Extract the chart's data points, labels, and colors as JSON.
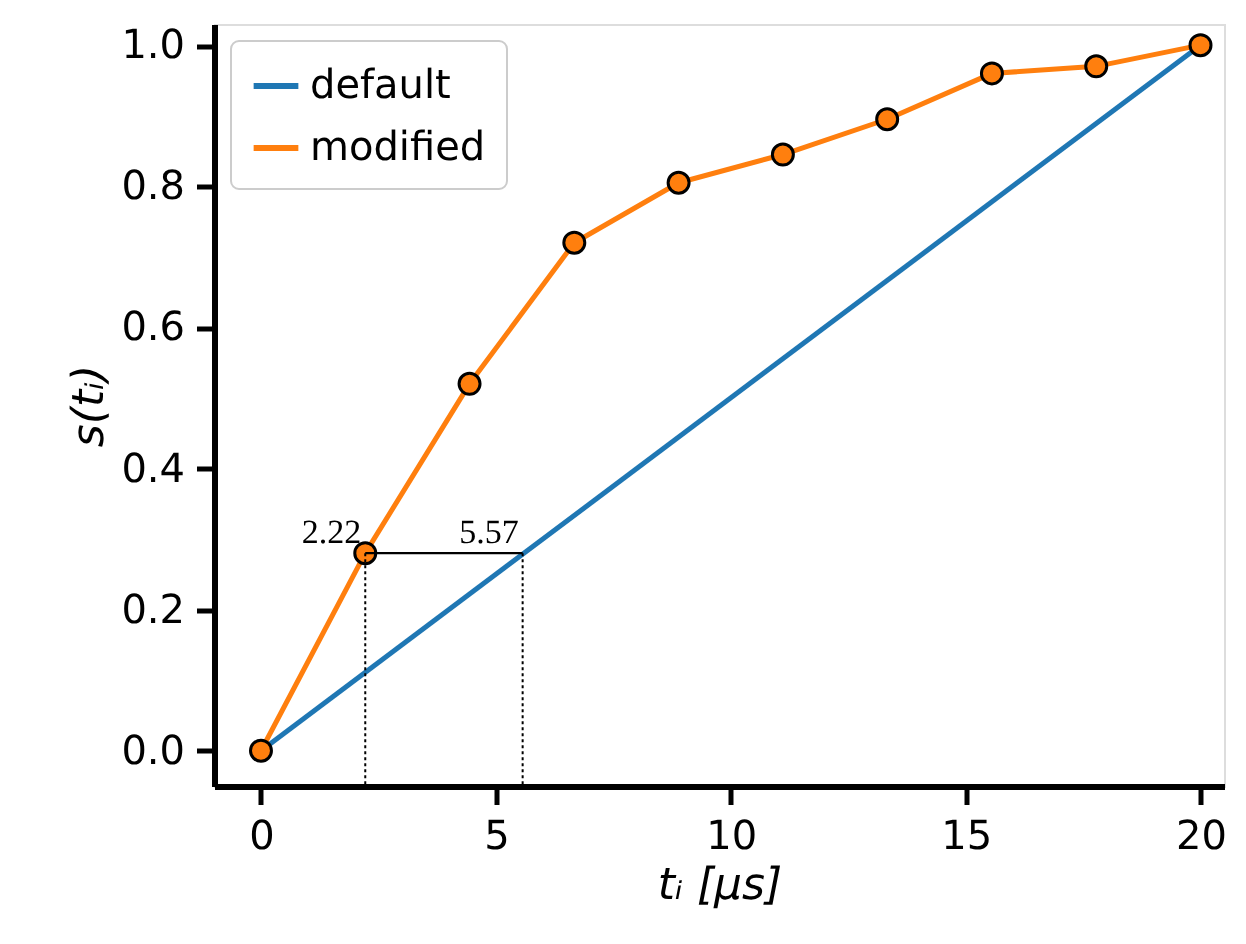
{
  "chart_data": {
    "type": "line",
    "xlabel": "tᵢ [μs]",
    "ylabel": "s(tᵢ)",
    "xlim": [
      -1,
      20.5
    ],
    "ylim": [
      -0.05,
      1.03
    ],
    "xticks": [
      0,
      5,
      10,
      15,
      20
    ],
    "yticks": [
      {
        "value": 0,
        "label": "0.0"
      },
      0.2,
      0.4,
      0.6,
      0.8,
      {
        "value": 1,
        "label": "1.0"
      }
    ],
    "grid": false,
    "legend": "top left",
    "line_style": "solid",
    "series": [
      {
        "name": "default",
        "color": "#1f77b4",
        "marker": "none",
        "x": [
          0,
          20
        ],
        "values": [
          0,
          1
        ]
      },
      {
        "name": "modified",
        "color": "#ff7f0e",
        "marker": "circle",
        "x": [
          0,
          2.22,
          4.44,
          6.67,
          8.89,
          11.11,
          13.33,
          15.56,
          17.78,
          20
        ],
        "values": [
          0,
          0.28,
          0.52,
          0.72,
          0.805,
          0.845,
          0.895,
          0.96,
          0.97,
          1.0
        ]
      }
    ],
    "annotations": [
      {
        "text": "2.22",
        "x": 2.22,
        "y": 0.28
      },
      {
        "text": "5.57",
        "x": 5.57,
        "y": 0.28
      }
    ]
  }
}
